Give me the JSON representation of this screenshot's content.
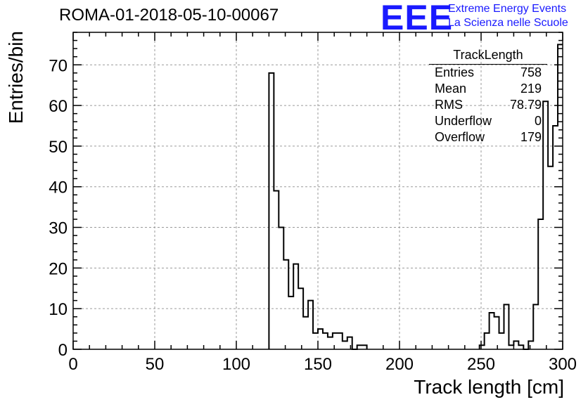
{
  "page": {
    "run_title": "ROMA-01-2018-05-10-00067",
    "logo_text": "EEE",
    "brand_line1": "Extreme Energy Events",
    "brand_line2": "La Scienza nelle Scuole",
    "logo_color": "#1a1aff"
  },
  "stats": {
    "title": "TrackLength",
    "rows": [
      {
        "label": "Entries",
        "value": "758"
      },
      {
        "label": "Mean",
        "value": "219"
      },
      {
        "label": "RMS",
        "value": "78.79"
      },
      {
        "label": "Underflow",
        "value": "0"
      },
      {
        "label": "Overflow",
        "value": "179"
      }
    ]
  },
  "chart_data": {
    "type": "bar",
    "histogram": true,
    "xlabel": "Track length [cm]",
    "ylabel": "Entries/bin",
    "xlim": [
      0,
      300
    ],
    "ylim": [
      0,
      78
    ],
    "xticks": [
      0,
      50,
      100,
      150,
      200,
      250,
      300
    ],
    "yticks": [
      0,
      10,
      20,
      30,
      40,
      50,
      60,
      70
    ],
    "grid": true,
    "bin_width": 3,
    "bins": [
      {
        "x": 120,
        "y": 68
      },
      {
        "x": 123,
        "y": 39
      },
      {
        "x": 126,
        "y": 30
      },
      {
        "x": 129,
        "y": 22
      },
      {
        "x": 132,
        "y": 13
      },
      {
        "x": 135,
        "y": 21
      },
      {
        "x": 138,
        "y": 15
      },
      {
        "x": 141,
        "y": 8
      },
      {
        "x": 144,
        "y": 12
      },
      {
        "x": 147,
        "y": 4
      },
      {
        "x": 150,
        "y": 5
      },
      {
        "x": 153,
        "y": 4
      },
      {
        "x": 156,
        "y": 3
      },
      {
        "x": 159,
        "y": 4
      },
      {
        "x": 162,
        "y": 4
      },
      {
        "x": 165,
        "y": 2
      },
      {
        "x": 168,
        "y": 3
      },
      {
        "x": 171,
        "y": 0
      },
      {
        "x": 174,
        "y": 1
      },
      {
        "x": 177,
        "y": 1
      },
      {
        "x": 249,
        "y": 1
      },
      {
        "x": 252,
        "y": 4
      },
      {
        "x": 255,
        "y": 9
      },
      {
        "x": 258,
        "y": 8
      },
      {
        "x": 261,
        "y": 4
      },
      {
        "x": 264,
        "y": 11
      },
      {
        "x": 267,
        "y": 1
      },
      {
        "x": 270,
        "y": 2
      },
      {
        "x": 273,
        "y": 1
      },
      {
        "x": 276,
        "y": 0
      },
      {
        "x": 279,
        "y": 2
      },
      {
        "x": 282,
        "y": 11
      },
      {
        "x": 285,
        "y": 32
      },
      {
        "x": 288,
        "y": 61
      },
      {
        "x": 291,
        "y": 45
      },
      {
        "x": 294,
        "y": 55
      },
      {
        "x": 297,
        "y": 75
      }
    ],
    "line_color": "#000000",
    "grid_color": "#9a9a9a"
  }
}
